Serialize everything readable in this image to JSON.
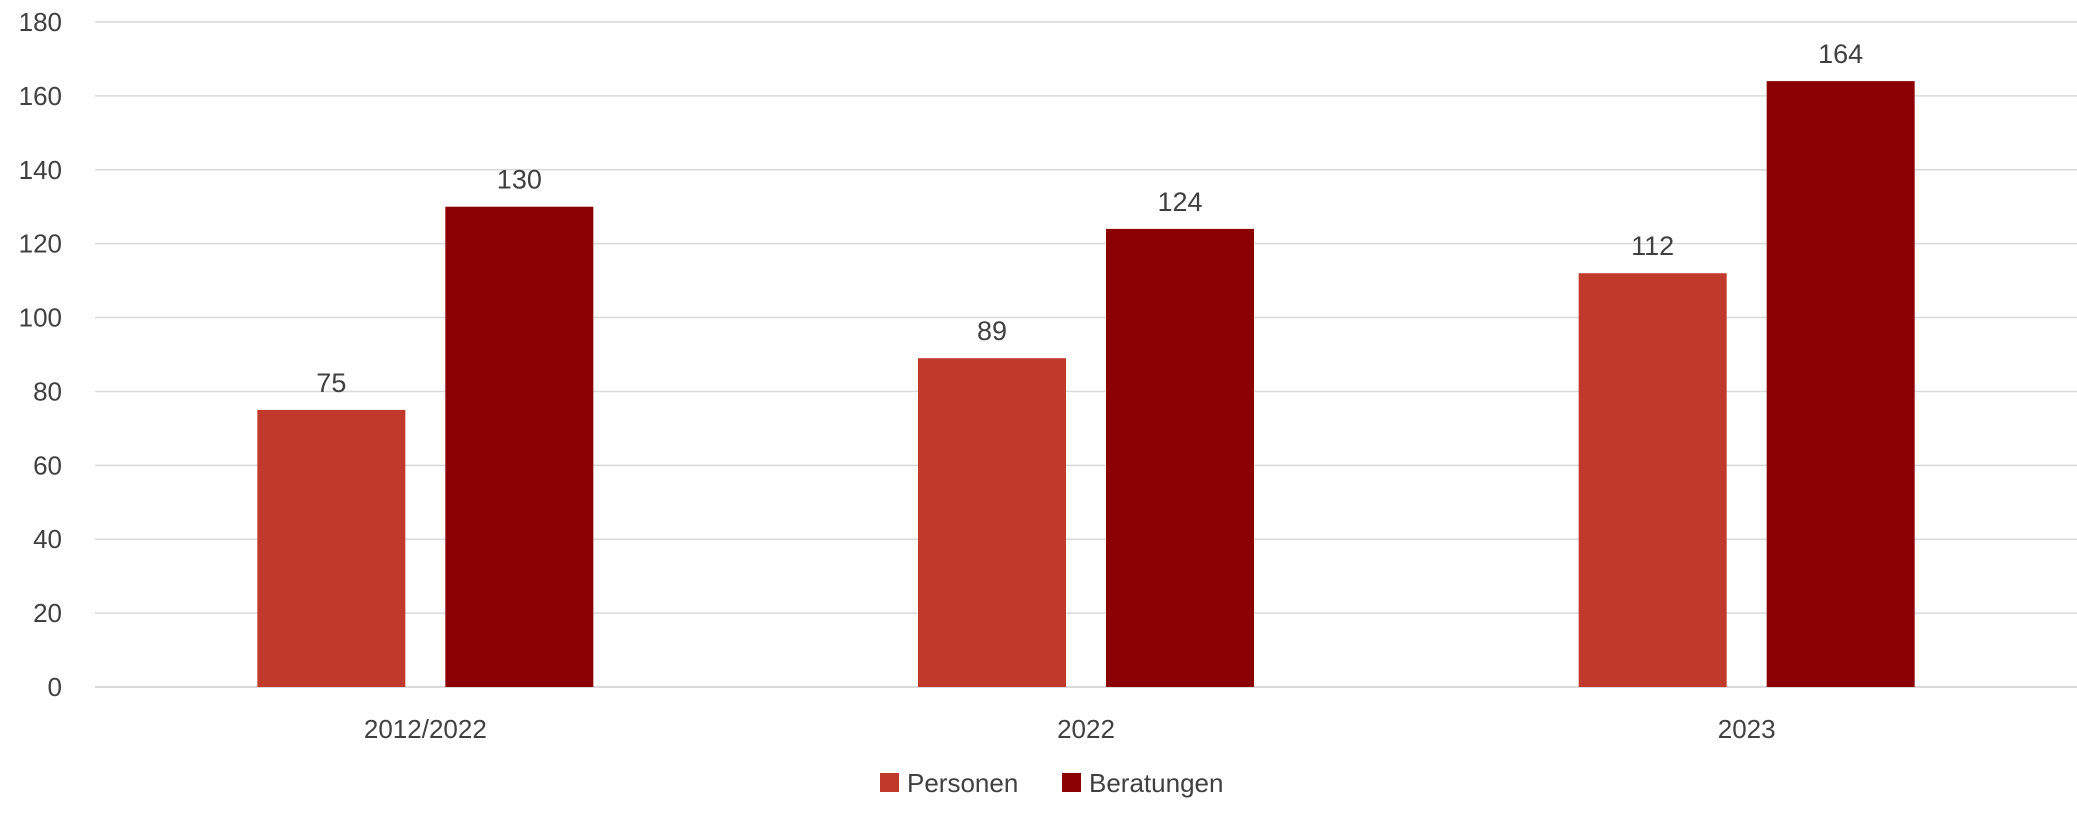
{
  "chart_data": {
    "type": "bar",
    "title": "",
    "xlabel": "",
    "ylabel": "",
    "categories": [
      "2012/2022",
      "2022",
      "2023"
    ],
    "series": [
      {
        "name": "Personen",
        "values": [
          75,
          89,
          112
        ],
        "color": "#C0392B"
      },
      {
        "name": "Beratungen",
        "values": [
          130,
          124,
          164
        ],
        "color": "#8B0000"
      }
    ],
    "ylim": [
      0,
      180
    ],
    "yticks": [
      "0",
      "20",
      "40",
      "60",
      "80",
      "100",
      "120",
      "140",
      "160",
      "180"
    ],
    "grid": true,
    "legend_position": "bottom-center",
    "data_labels": true
  }
}
